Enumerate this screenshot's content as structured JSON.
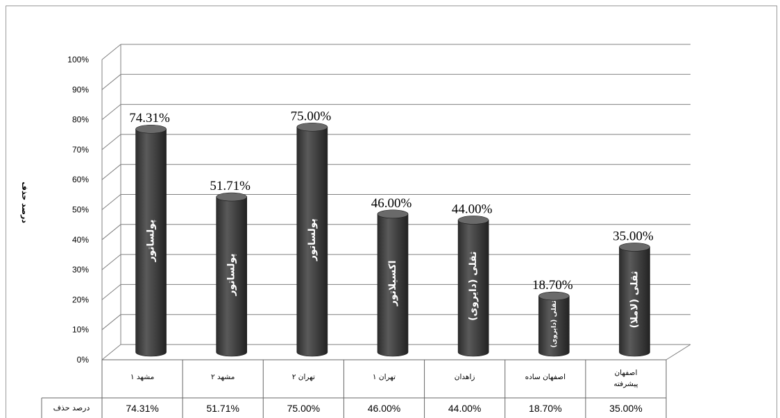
{
  "chart_data": {
    "type": "bar",
    "ylabel": "درصد حذف",
    "ylim": [
      0,
      100
    ],
    "yticks": [
      "0%",
      "10%",
      "20%",
      "30%",
      "40%",
      "50%",
      "60%",
      "70%",
      "80%",
      "90%",
      "100%"
    ],
    "categories": [
      [
        "مشهد ۱"
      ],
      [
        "مشهد ۲"
      ],
      [
        "تهران ۲"
      ],
      [
        "تهران ۱"
      ],
      [
        "زاهدان"
      ],
      [
        "اصفهان ساده"
      ],
      [
        "اصفهان",
        "پیشرفته"
      ]
    ],
    "values": [
      74.31,
      51.71,
      75.0,
      46.0,
      44.0,
      18.7,
      35.0
    ],
    "data_labels": [
      "74.31%",
      "51.71%",
      "75.00%",
      "46.00%",
      "44.00%",
      "18.70%",
      "35.00%"
    ],
    "bar_labels": [
      "پولساتور",
      "پولساتور",
      "پولساتور",
      "اکسیلاتور",
      "ثقلی (دایروی)",
      "ثقلی (دایروی)",
      "ثقلی (لاملا)"
    ],
    "table": {
      "row_header": "درصد حذف",
      "values": [
        "74.31%",
        "51.71%",
        "75.00%",
        "46.00%",
        "44.00%",
        "18.70%",
        "35.00%"
      ]
    },
    "grid": true,
    "legend": "none",
    "colors": {
      "bar": "#4a4a4a",
      "bar_top": "#6a6a6a",
      "grid": "#7f7f7f"
    }
  }
}
